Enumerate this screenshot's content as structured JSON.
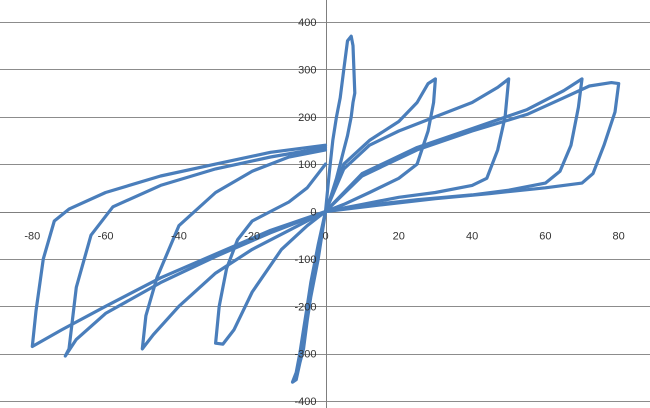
{
  "chart_data": {
    "type": "line",
    "title": "",
    "xlabel": "",
    "ylabel": "",
    "xlim": [
      -88,
      88
    ],
    "ylim": [
      -400,
      400
    ],
    "grid": "horizontal",
    "legend": "none",
    "x_ticks": [
      -80,
      -60,
      -40,
      -20,
      0,
      20,
      40,
      60,
      80
    ],
    "x_tick_labels": [
      "-80",
      "-60",
      "-40",
      "-20",
      "0",
      "20",
      "40",
      "60",
      "80"
    ],
    "y_ticks": [
      -400,
      -300,
      -200,
      -100,
      0,
      100,
      200,
      300,
      400
    ],
    "y_tick_labels": [
      "-400",
      "-300",
      "-200",
      "-100",
      "0",
      "100",
      "200",
      "300",
      "400"
    ],
    "series_color": "#4a7ebb",
    "series": [
      {
        "x": [
          0,
          1,
          2,
          3,
          4,
          5,
          6,
          7,
          7.5,
          8,
          7.5,
          7,
          6,
          5,
          4,
          3,
          2,
          1,
          0,
          -2,
          -4,
          -5,
          -6,
          -7,
          -8,
          -9,
          -8,
          -7,
          -6,
          -5,
          -4,
          -2,
          0
        ],
        "y": [
          0,
          80,
          150,
          200,
          240,
          300,
          360,
          370,
          350,
          250,
          230,
          200,
          160,
          130,
          100,
          70,
          45,
          20,
          0,
          -100,
          -180,
          -230,
          -290,
          -320,
          -355,
          -360,
          -340,
          -300,
          -250,
          -200,
          -150,
          -70,
          0
        ]
      },
      {
        "x": [
          0,
          5,
          12,
          20,
          25,
          28,
          30,
          29.5,
          28,
          25,
          20,
          12,
          5,
          0,
          -5,
          -12,
          -20,
          -25,
          -28,
          -30,
          -29,
          -27,
          -24,
          -20,
          -15,
          -10,
          -5,
          0
        ],
        "y": [
          0,
          100,
          150,
          190,
          230,
          270,
          280,
          230,
          170,
          100,
          70,
          40,
          15,
          0,
          -30,
          -80,
          -170,
          -250,
          -280,
          -278,
          -200,
          -120,
          -60,
          -20,
          0,
          20,
          50,
          100
        ]
      },
      {
        "x": [
          0,
          5,
          12,
          20,
          30,
          40,
          47,
          50,
          49,
          47,
          44,
          40,
          30,
          20,
          10,
          0,
          -10,
          -20,
          -30,
          -40,
          -47,
          -50,
          -49,
          -46,
          -40,
          -30,
          -20,
          -10,
          0
        ],
        "y": [
          0,
          90,
          140,
          170,
          200,
          230,
          262,
          280,
          200,
          130,
          70,
          55,
          40,
          30,
          15,
          0,
          -40,
          -80,
          -130,
          -200,
          -260,
          -290,
          -220,
          -140,
          -30,
          40,
          85,
          115,
          130
        ]
      },
      {
        "x": [
          0,
          10,
          25,
          40,
          55,
          65,
          70,
          69,
          67,
          64,
          60,
          50,
          40,
          25,
          10,
          0,
          -15,
          -30,
          -45,
          -60,
          -68,
          -71,
          -70,
          -68,
          -64,
          -58,
          -45,
          -30,
          -15,
          0
        ],
        "y": [
          0,
          80,
          135,
          175,
          215,
          255,
          280,
          220,
          140,
          85,
          60,
          45,
          35,
          25,
          12,
          0,
          -45,
          -95,
          -150,
          -215,
          -270,
          -305,
          -290,
          -160,
          -50,
          10,
          55,
          90,
          115,
          135
        ]
      },
      {
        "x": [
          0,
          10,
          25,
          40,
          55,
          65,
          72,
          78,
          80,
          79,
          76,
          73,
          70,
          60,
          45,
          30,
          15,
          0,
          -15,
          -30,
          -45,
          -60,
          -72,
          -80,
          -79,
          -77,
          -74,
          -70,
          -60,
          -45,
          -30,
          -15,
          0
        ],
        "y": [
          0,
          75,
          130,
          170,
          205,
          240,
          265,
          272,
          270,
          210,
          140,
          80,
          60,
          50,
          38,
          27,
          14,
          0,
          -40,
          -90,
          -140,
          -200,
          -250,
          -285,
          -210,
          -100,
          -20,
          5,
          40,
          75,
          100,
          125,
          140
        ]
      }
    ]
  }
}
